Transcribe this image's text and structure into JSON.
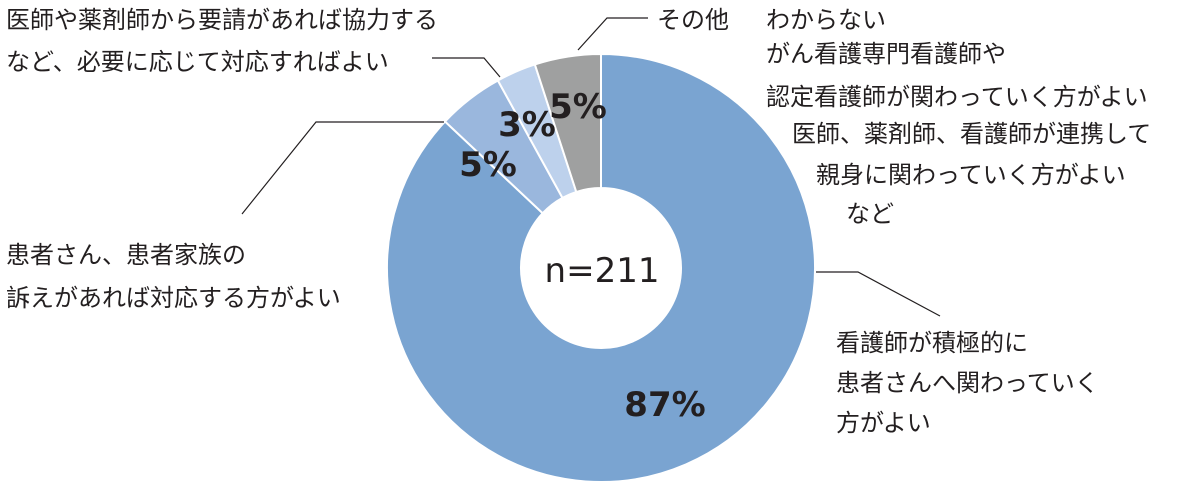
{
  "chart_data": {
    "type": "pie",
    "variant": "donut",
    "center_label": "n=211",
    "slices": [
      {
        "label": [
          "看護師が積極的に",
          "患者さんへ関わっていく",
          "方がよい"
        ],
        "value": 87,
        "display": "87%",
        "color": "#7aa4d1"
      },
      {
        "label": [
          "患者さん、患者家族の",
          "訴えがあれば対応する方がよい"
        ],
        "value": 5,
        "display": "5%",
        "color": "#9ab7dd"
      },
      {
        "label": [
          "医師や薬剤師から要請があれば協力する",
          "など、必要に応じて対応すればよい"
        ],
        "value": 3,
        "display": "3%",
        "color": "#bdd1ec"
      },
      {
        "label": [
          "その他"
        ],
        "value": 5,
        "display": "5%",
        "color": "#9fa0a0"
      }
    ],
    "other_note": [
      "わからない",
      "がん看護専門看護師や",
      "認定看護師が関わっていく方がよい",
      "医師、薬剤師、看護師が連携して",
      "親身に関わっていく方がよい",
      "など"
    ]
  }
}
